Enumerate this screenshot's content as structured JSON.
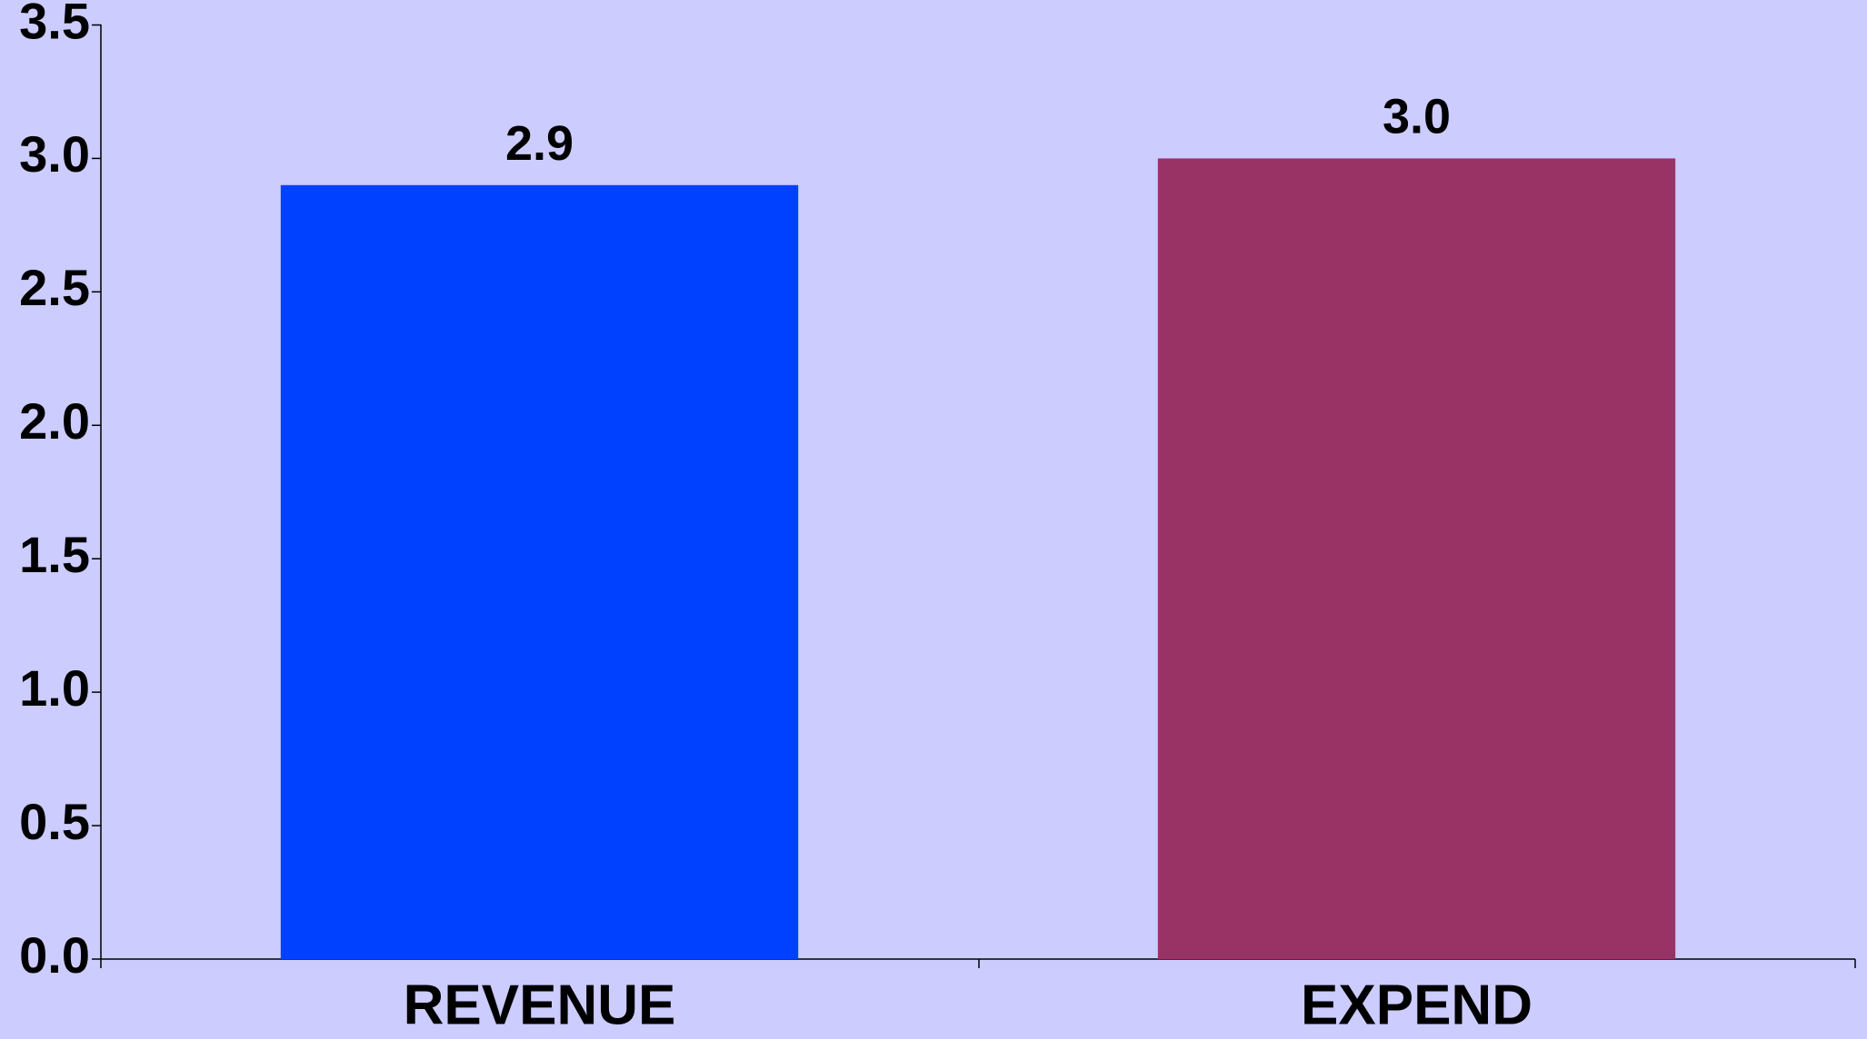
{
  "chart_data": {
    "type": "bar",
    "categories": [
      "REVENUE",
      "EXPEND"
    ],
    "values": [
      2.9,
      3.0
    ],
    "value_labels": [
      "2.9",
      "3.0"
    ],
    "colors": [
      "#0040ff",
      "#993366"
    ],
    "ylim": [
      0,
      3.5
    ],
    "yticks": [
      {
        "value": 0,
        "label": "0.0"
      },
      {
        "value": 0.5,
        "label": "0.5"
      },
      {
        "value": 1,
        "label": "1.0"
      },
      {
        "value": 1.5,
        "label": "1.5"
      },
      {
        "value": 2,
        "label": "2.0"
      },
      {
        "value": 2.5,
        "label": "2.5"
      },
      {
        "value": 3,
        "label": "3.0"
      },
      {
        "value": 3.5,
        "label": "3.5"
      }
    ],
    "grid": false
  }
}
